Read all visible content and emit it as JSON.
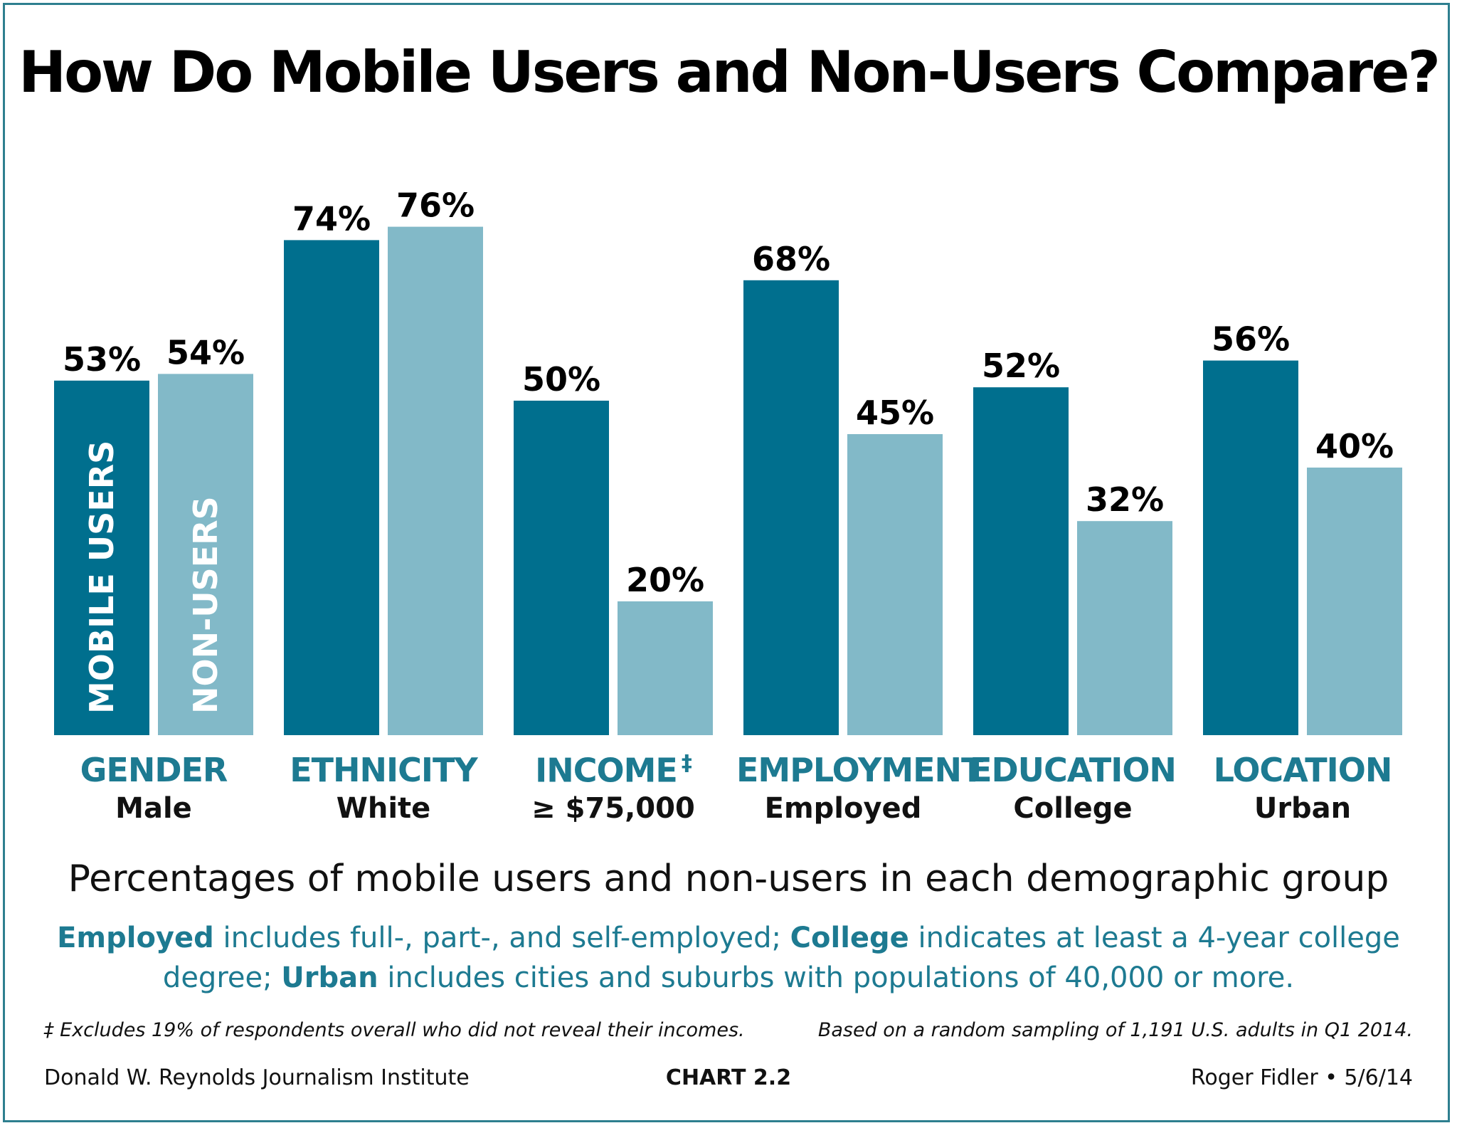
{
  "chart_data": {
    "type": "bar",
    "title": "How Do Mobile Users and Non-Users Compare?",
    "subtitle": "Percentages of mobile users and non-users in each demographic group",
    "categories": [
      "GENDER",
      "ETHNICITY",
      "INCOME",
      "EMPLOYMENT",
      "EDUCATION",
      "LOCATION"
    ],
    "category_subs": [
      "Male",
      "White",
      "≥ $75,000",
      "Employed",
      "College",
      "Urban"
    ],
    "income_marker": "‡",
    "series": [
      {
        "name": "MOBILE USERS",
        "color": "#006f8e",
        "values": [
          53,
          74,
          50,
          68,
          52,
          56
        ]
      },
      {
        "name": "NON-USERS",
        "color": "#82b9c8",
        "values": [
          54,
          76,
          20,
          45,
          32,
          40
        ]
      }
    ],
    "value_labels": {
      "mobile": [
        "53%",
        "74%",
        "50%",
        "68%",
        "52%",
        "56%"
      ],
      "non_users": [
        "54%",
        "76%",
        "20%",
        "45%",
        "32%",
        "40%"
      ]
    },
    "ylim": [
      0,
      100
    ],
    "grid": false,
    "legend": "inside-first-bars"
  },
  "notes": {
    "employed_term": "Employed",
    "employed_text": " includes full-, part-, and self-employed;  ",
    "college_term": "College",
    "college_text": " indicates at least a 4-year college degree;  ",
    "urban_term": "Urban",
    "urban_text": " includes cities and suburbs with populations of 40,000 or more."
  },
  "footnotes": {
    "income": "‡ Excludes 19% of respondents overall who did not reveal their incomes.",
    "sample": "Based on a random sampling of 1,191 U.S. adults in Q1 2014."
  },
  "credits": {
    "org": "Donald W. Reynolds Journalism Institute",
    "chart_id": "CHART 2.2",
    "author": "Roger Fidler • 5/6/14"
  }
}
